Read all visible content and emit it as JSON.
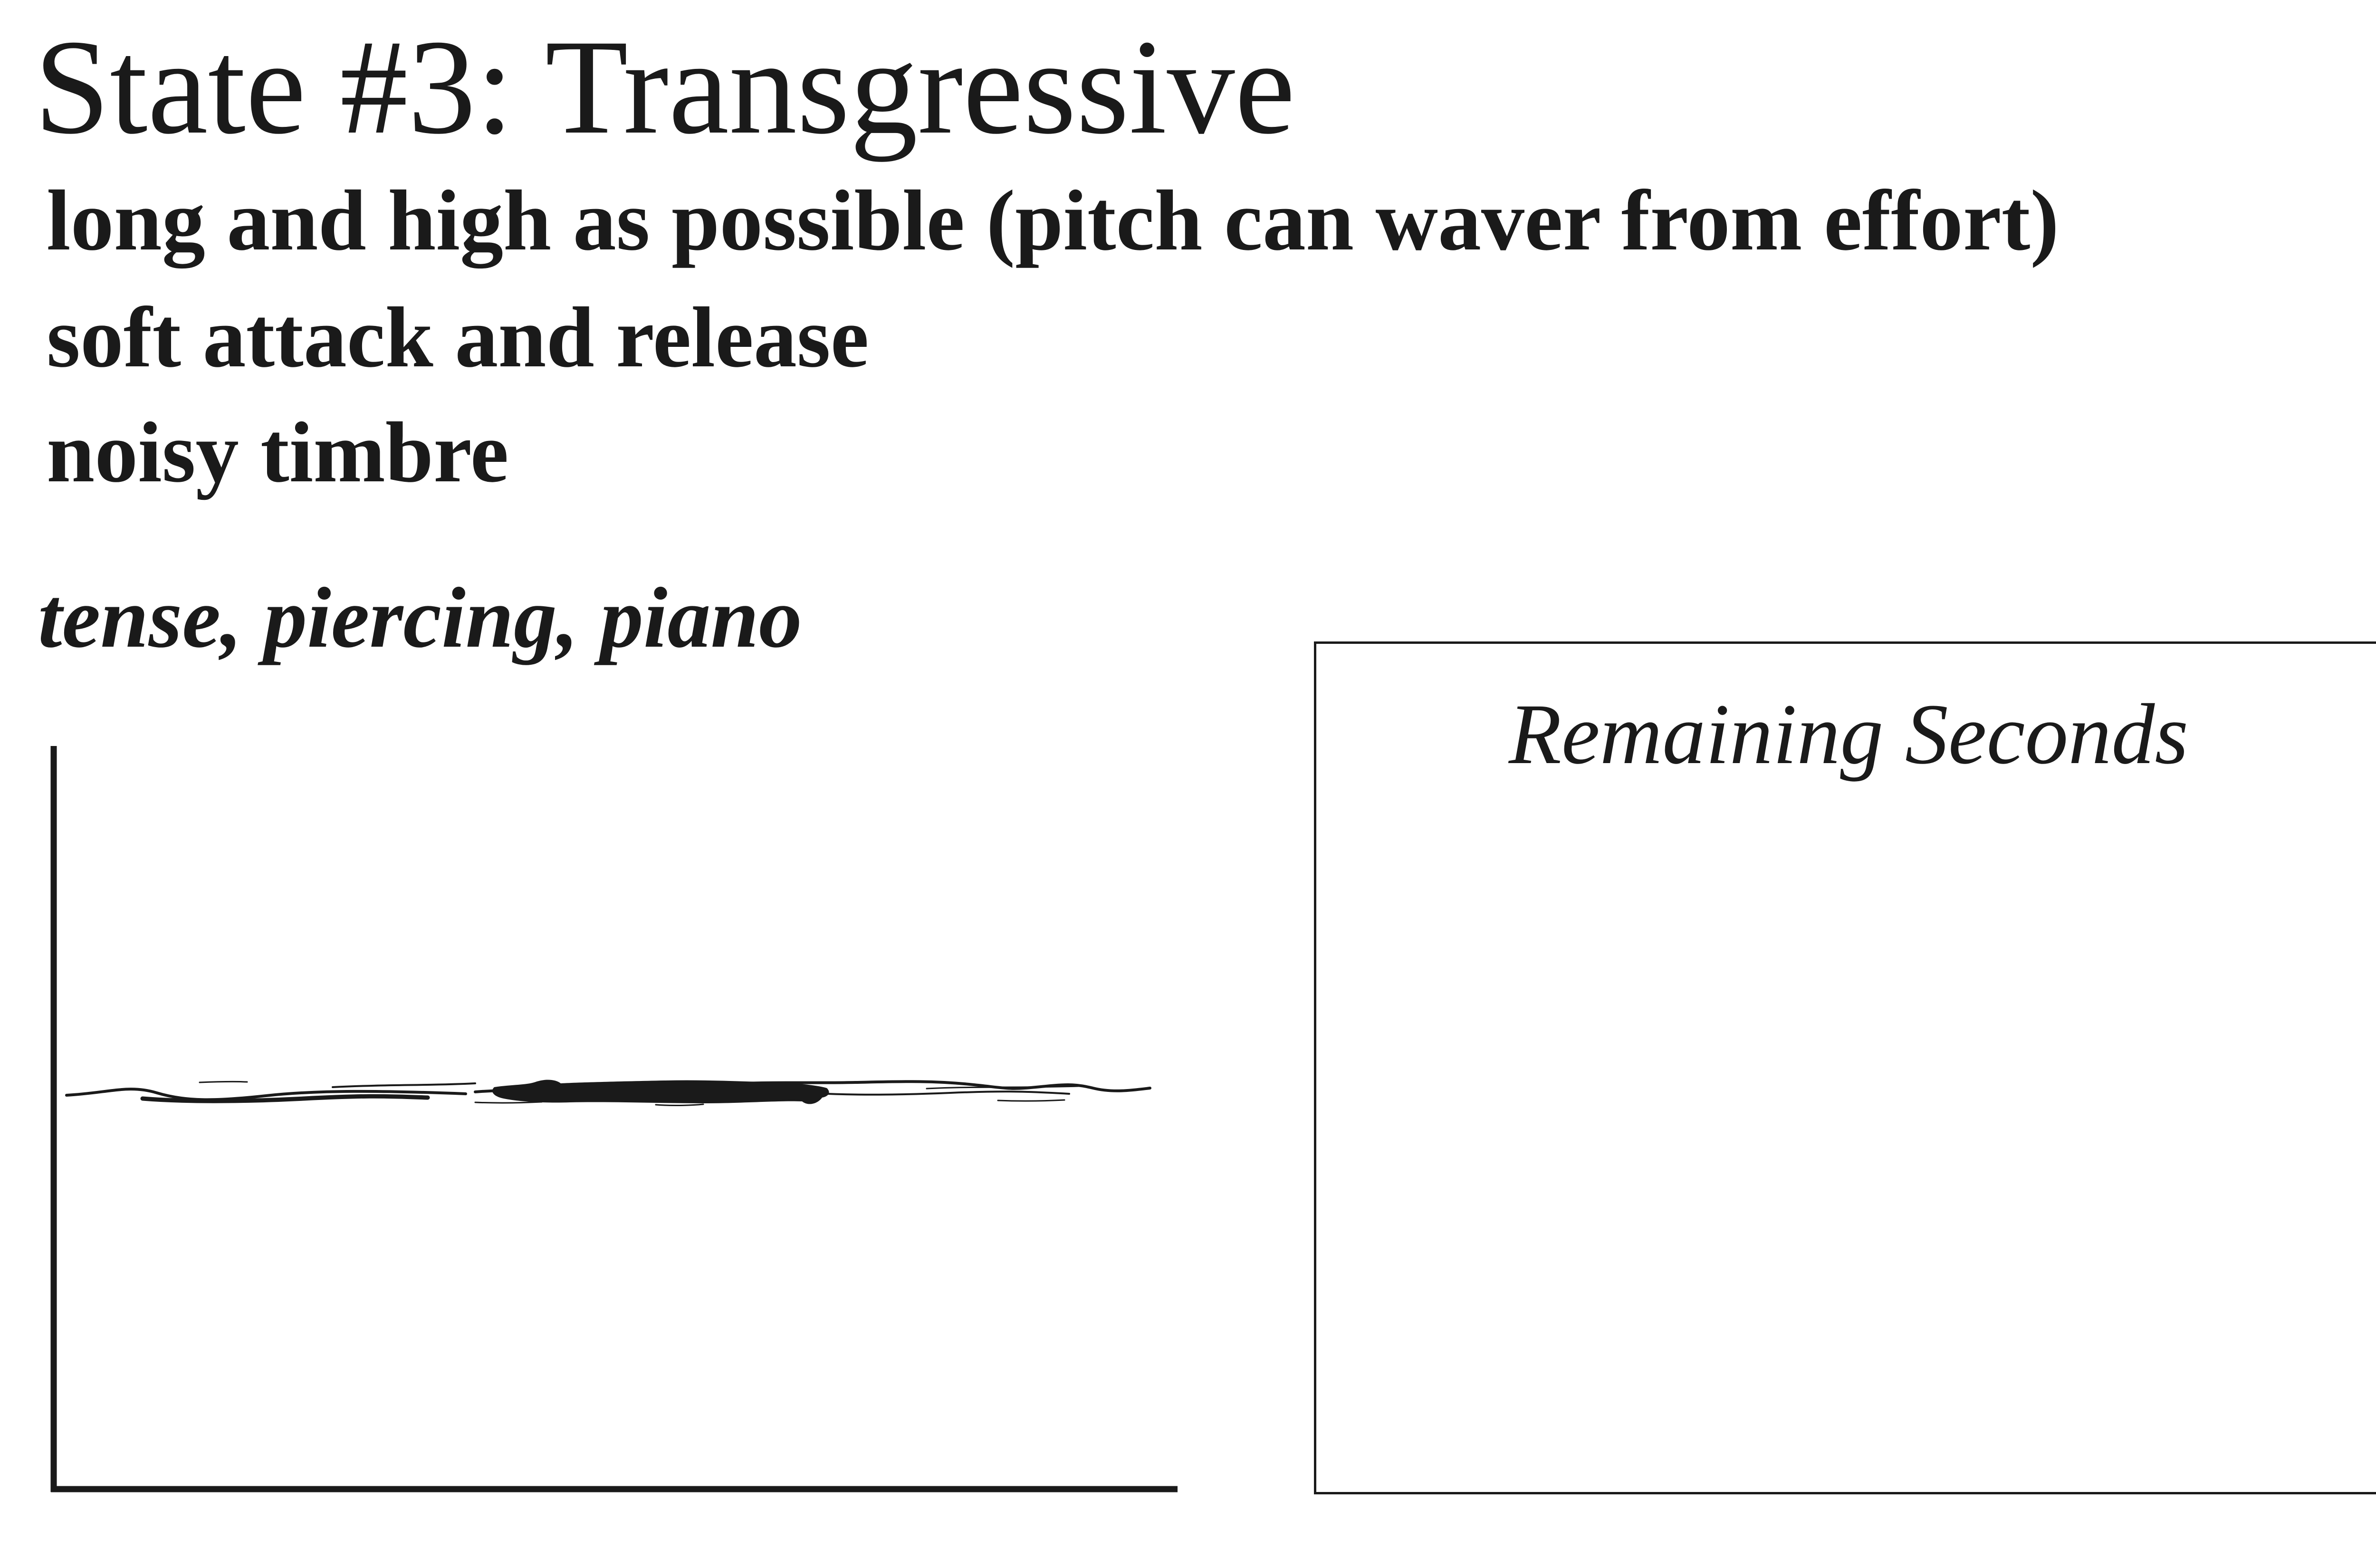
{
  "score": {
    "title": "State #3: Transgressive",
    "instructions": [
      "long and high as possible (pitch can waver from effort)",
      "soft attack and release",
      "noisy timbre"
    ],
    "character": "tense, piercing, piano"
  },
  "timer": {
    "label": "Remaining Seconds"
  }
}
